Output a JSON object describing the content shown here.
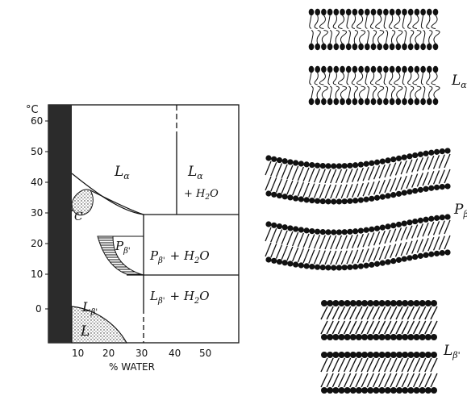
{
  "diagram": {
    "axes": {
      "y_unit": "°C",
      "y_ticks": [
        "60",
        "50",
        "40",
        "30",
        "20",
        "10",
        "0"
      ],
      "x_ticks": [
        "10",
        "20",
        "30",
        "40",
        "50"
      ],
      "x_title": "% WATER"
    },
    "regions": {
      "l_alpha": "L",
      "l_alpha_sub": "α",
      "l_alpha_water": "L",
      "l_alpha_water_sub": "α",
      "l_alpha_water_plus": "+ H",
      "l_alpha_water_sub2": "2",
      "l_alpha_water_o": "O",
      "c": "C",
      "p_beta": "P",
      "p_beta_sub": "β'",
      "p_beta_water": "P",
      "p_beta_water_sub": "β'",
      "p_beta_water_plus": "+ H",
      "p_beta_water_sub2": "2",
      "p_beta_water_o": "O",
      "l_beta": "L",
      "l_beta_sub": "β'",
      "l_beta_water": "L",
      "l_beta_water_sub": "β'",
      "l_beta_water_plus": "+ H",
      "l_beta_water_sub2": "2",
      "l_beta_water_o": "O",
      "l": "L"
    },
    "structures": {
      "l_alpha_label": "L",
      "l_alpha_sub": "α",
      "p_beta_label": "P",
      "p_beta_sub": "β",
      "l_beta_label": "L",
      "l_beta_sub": "β'"
    }
  }
}
